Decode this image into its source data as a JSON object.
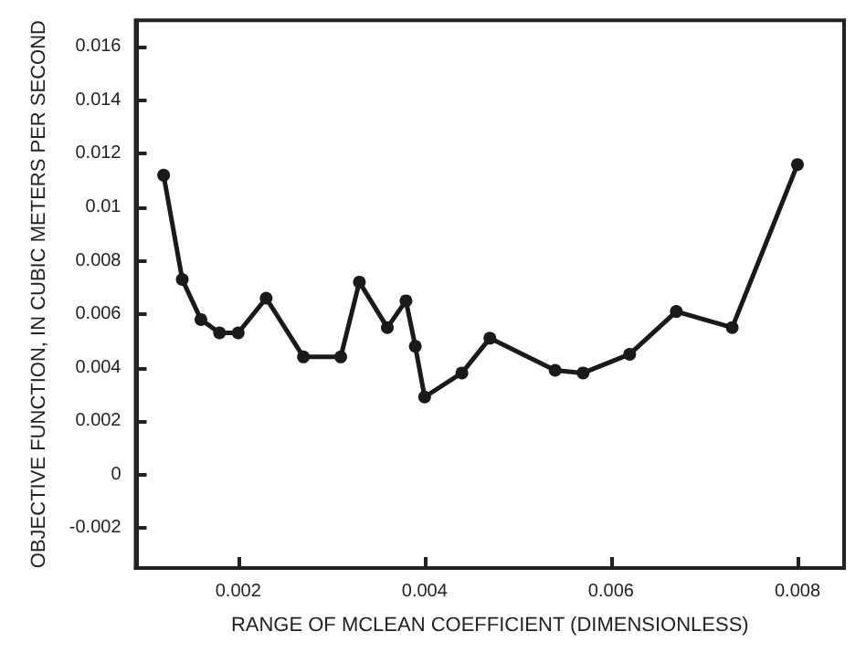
{
  "chart_data": {
    "type": "line",
    "xlabel": "RANGE OF MCLEAN COEFFICIENT (DIMENSIONLESS)",
    "ylabel": "OBJECTIVE FUNCTION, IN CUBIC METERS PER SECOND",
    "x": [
      0.0012,
      0.0014,
      0.0016,
      0.0018,
      0.002,
      0.0023,
      0.0027,
      0.0031,
      0.0033,
      0.0036,
      0.0038,
      0.0039,
      0.004,
      0.0044,
      0.0047,
      0.0054,
      0.0057,
      0.0062,
      0.0067,
      0.0073,
      0.008
    ],
    "series": [
      {
        "color": "#1a1a1a",
        "values": [
          0.0112,
          0.0073,
          0.0058,
          0.0053,
          0.0053,
          0.0066,
          0.0044,
          0.0044,
          0.0072,
          0.0055,
          0.0065,
          0.0048,
          0.0029,
          0.0038,
          0.0051,
          0.0039,
          0.0038,
          0.0045,
          0.0061,
          0.0055,
          0.0116
        ]
      }
    ],
    "xlim": [
      0.0009,
      0.0085
    ],
    "xticks": [
      0.002,
      0.004,
      0.006,
      0.008
    ],
    "ylim": [
      -0.0035,
      0.017
    ],
    "yticks": [
      -0.002,
      0,
      0.002,
      0.004,
      0.006,
      0.008,
      0.01,
      0.012,
      0.014,
      0.016
    ],
    "grid": false,
    "marker": "circle",
    "line_style": "solid"
  }
}
